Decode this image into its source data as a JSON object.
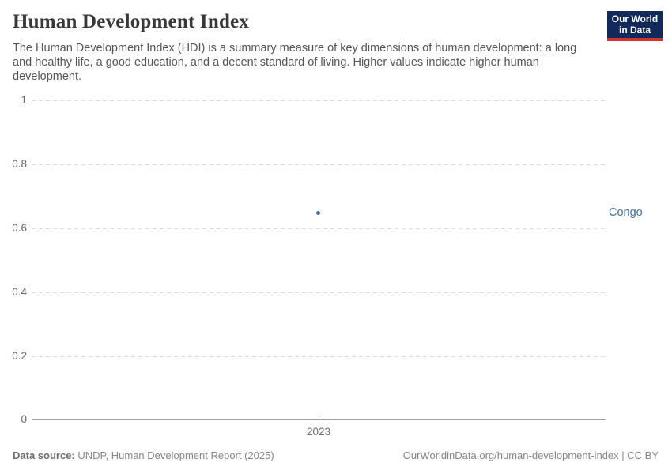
{
  "header": {
    "title": "Human Development Index",
    "subtitle_lines": [
      "The Human Development Index (HDI) is a summary measure of key dimensions of human development: a long",
      "and healthy life, a good education, and a decent standard of living. Higher values indicate higher human",
      "development."
    ],
    "logo": {
      "line1": "Our World",
      "line2": "in Data",
      "bg_color": "#12295b",
      "bar_color": "#cf352e"
    }
  },
  "chart_data": {
    "type": "scatter",
    "title": "Human Development Index",
    "series": [
      {
        "name": "Congo",
        "color": "#4270a8",
        "points": [
          {
            "x": 2023,
            "y": 0.649
          }
        ]
      }
    ],
    "xlabel": "",
    "ylabel": "",
    "x_ticks": [
      "2023"
    ],
    "y_ticks": [
      "1",
      "0.8",
      "0.6",
      "0.4",
      "0.2",
      "0"
    ],
    "ylim": [
      0,
      1
    ],
    "grid": "horizontal-dashed",
    "legend_position": "entity label right of plot"
  },
  "footer": {
    "source_label": "Data source:",
    "source_text": " UNDP, Human Development Report (2025)",
    "rights": "OurWorldinData.org/human-development-index | CC BY"
  },
  "colors": {
    "title": "#383838",
    "subtitle": "#555555",
    "axis_labels": "#666666",
    "gridline": "#dcdcdc",
    "axis_line": "#9e9e9e",
    "series_congo": "#4270a8",
    "logo_bg": "#12295b",
    "logo_bar": "#cf352e",
    "footer_text": "#858585"
  }
}
